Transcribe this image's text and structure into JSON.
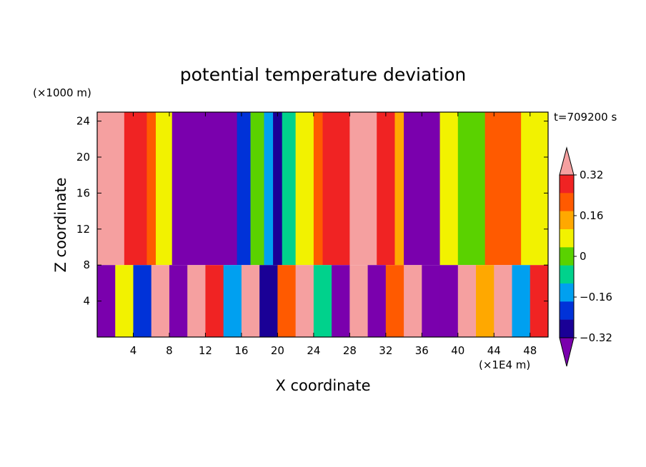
{
  "chart_data": {
    "type": "heatmap",
    "title": "potential temperature deviation",
    "xlabel": "X coordinate",
    "ylabel": "Z coordinate",
    "x_unit": "(×1E4 m)",
    "y_unit": "(×1000 m)",
    "time_label": "t=709200 s",
    "xlim": [
      0,
      50
    ],
    "ylim": [
      0,
      25
    ],
    "x_ticks": [
      "4",
      "8",
      "12",
      "16",
      "20",
      "24",
      "28",
      "32",
      "36",
      "40",
      "44",
      "48"
    ],
    "y_ticks": [
      "4",
      "8",
      "12",
      "16",
      "20",
      "24"
    ],
    "colorbar": {
      "labels": [
        "0.32",
        "0.16",
        "0",
        "−0.16",
        "−0.32"
      ],
      "label_values": [
        0.32,
        0.16,
        0,
        -0.16,
        -0.32
      ],
      "levels": [
        -0.4,
        -0.32,
        -0.24,
        -0.16,
        -0.08,
        0,
        0.08,
        0.16,
        0.24,
        0.32,
        0.4
      ],
      "colors": [
        "#7a00ad",
        "#1a0096",
        "#0032d8",
        "#00a0f0",
        "#00d28c",
        "#5ad200",
        "#f2f200",
        "#ffa800",
        "#ff5a00",
        "#f02323",
        "#f5a0a0"
      ]
    },
    "upper_layer_columns": {
      "x": [
        0,
        3,
        5.5,
        6.5,
        8.3,
        12,
        14.5,
        15.5,
        17,
        18.5,
        19.5,
        20.5,
        22,
        24,
        25,
        28,
        31,
        33,
        34,
        36,
        38,
        40,
        43,
        47,
        50
      ],
      "level": [
        10,
        9,
        8,
        6,
        0,
        0,
        0,
        2,
        5,
        3,
        1,
        4,
        6,
        8,
        9,
        10,
        9,
        7,
        0,
        0,
        6,
        5,
        8,
        6,
        3
      ]
    },
    "lower_layer_columns": {
      "x": [
        0,
        2,
        4,
        6,
        8,
        10,
        12,
        14,
        16,
        18,
        20,
        22,
        24,
        26,
        28,
        30,
        32,
        34,
        36,
        38,
        40,
        42,
        44,
        46,
        48,
        50
      ],
      "level": [
        0,
        6,
        2,
        10,
        0,
        10,
        9,
        3,
        10,
        1,
        8,
        10,
        4,
        0,
        10,
        0,
        8,
        10,
        0,
        0,
        10,
        7,
        10,
        3,
        9,
        0
      ]
    }
  }
}
